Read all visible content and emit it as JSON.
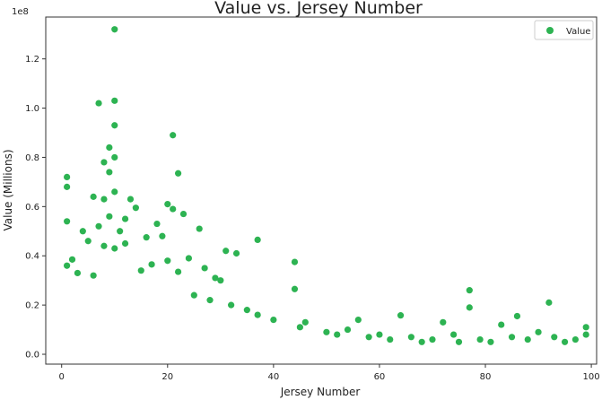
{
  "chart_data": {
    "type": "scatter",
    "title": "Value vs. Jersey Number",
    "xlabel": "Jersey Number",
    "ylabel": "Value (Millions)",
    "y_offset_label": "1e8",
    "xlim": [
      -3,
      101
    ],
    "ylim": [
      -4000000,
      137000000
    ],
    "x_ticks": [
      0,
      20,
      40,
      60,
      80,
      100
    ],
    "x_tick_labels": [
      "0",
      "20",
      "40",
      "60",
      "80",
      "100"
    ],
    "y_ticks": [
      0,
      20000000,
      40000000,
      60000000,
      80000000,
      100000000,
      120000000
    ],
    "y_tick_labels": [
      "0.0",
      "0.2",
      "0.4",
      "0.6",
      "0.8",
      "1.0",
      "1.2"
    ],
    "grid": false,
    "legend_position": "top-right",
    "point_color": "#2db352",
    "series": [
      {
        "name": "Value",
        "points": [
          [
            10,
            132000000
          ],
          [
            10,
            103000000
          ],
          [
            7,
            102000000
          ],
          [
            10,
            93000000
          ],
          [
            21,
            89000000
          ],
          [
            9,
            84000000
          ],
          [
            8,
            78000000
          ],
          [
            10,
            80000000
          ],
          [
            22,
            73500000
          ],
          [
            1,
            72000000
          ],
          [
            1,
            68000000
          ],
          [
            9,
            74000000
          ],
          [
            6,
            64000000
          ],
          [
            8,
            63000000
          ],
          [
            10,
            66000000
          ],
          [
            13,
            63000000
          ],
          [
            20,
            61000000
          ],
          [
            21,
            59000000
          ],
          [
            23,
            57000000
          ],
          [
            14,
            59500000
          ],
          [
            12,
            55000000
          ],
          [
            9,
            56000000
          ],
          [
            1,
            54000000
          ],
          [
            4,
            50000000
          ],
          [
            18,
            53000000
          ],
          [
            26,
            51000000
          ],
          [
            11,
            50000000
          ],
          [
            5,
            46000000
          ],
          [
            7,
            52000000
          ],
          [
            16,
            47500000
          ],
          [
            19,
            48000000
          ],
          [
            37,
            46500000
          ],
          [
            8,
            44000000
          ],
          [
            10,
            43000000
          ],
          [
            12,
            45000000
          ],
          [
            31,
            42000000
          ],
          [
            33,
            41000000
          ],
          [
            44,
            37500000
          ],
          [
            2,
            38500000
          ],
          [
            1,
            36000000
          ],
          [
            17,
            36500000
          ],
          [
            20,
            38000000
          ],
          [
            24,
            39000000
          ],
          [
            27,
            35000000
          ],
          [
            3,
            33000000
          ],
          [
            6,
            32000000
          ],
          [
            15,
            34000000
          ],
          [
            22,
            33500000
          ],
          [
            29,
            31000000
          ],
          [
            30,
            30000000
          ],
          [
            44,
            26500000
          ],
          [
            77,
            26000000
          ],
          [
            92,
            21000000
          ],
          [
            77,
            19000000
          ],
          [
            64,
            15800000
          ],
          [
            56,
            14000000
          ],
          [
            86,
            15500000
          ],
          [
            72,
            13000000
          ],
          [
            99,
            11000000
          ],
          [
            83,
            12000000
          ],
          [
            40,
            14000000
          ],
          [
            37,
            16000000
          ],
          [
            35,
            18000000
          ],
          [
            32,
            20000000
          ],
          [
            28,
            22000000
          ],
          [
            25,
            24000000
          ],
          [
            45,
            11000000
          ],
          [
            46,
            13000000
          ],
          [
            50,
            9000000
          ],
          [
            52,
            8000000
          ],
          [
            54,
            10000000
          ],
          [
            58,
            7000000
          ],
          [
            60,
            8000000
          ],
          [
            62,
            6000000
          ],
          [
            66,
            7000000
          ],
          [
            68,
            5000000
          ],
          [
            70,
            6000000
          ],
          [
            74,
            8000000
          ],
          [
            75,
            5000000
          ],
          [
            79,
            6000000
          ],
          [
            81,
            5000000
          ],
          [
            85,
            7000000
          ],
          [
            88,
            6000000
          ],
          [
            90,
            9000000
          ],
          [
            93,
            7000000
          ],
          [
            95,
            5000000
          ],
          [
            97,
            6000000
          ],
          [
            99,
            8000000
          ]
        ]
      }
    ]
  }
}
